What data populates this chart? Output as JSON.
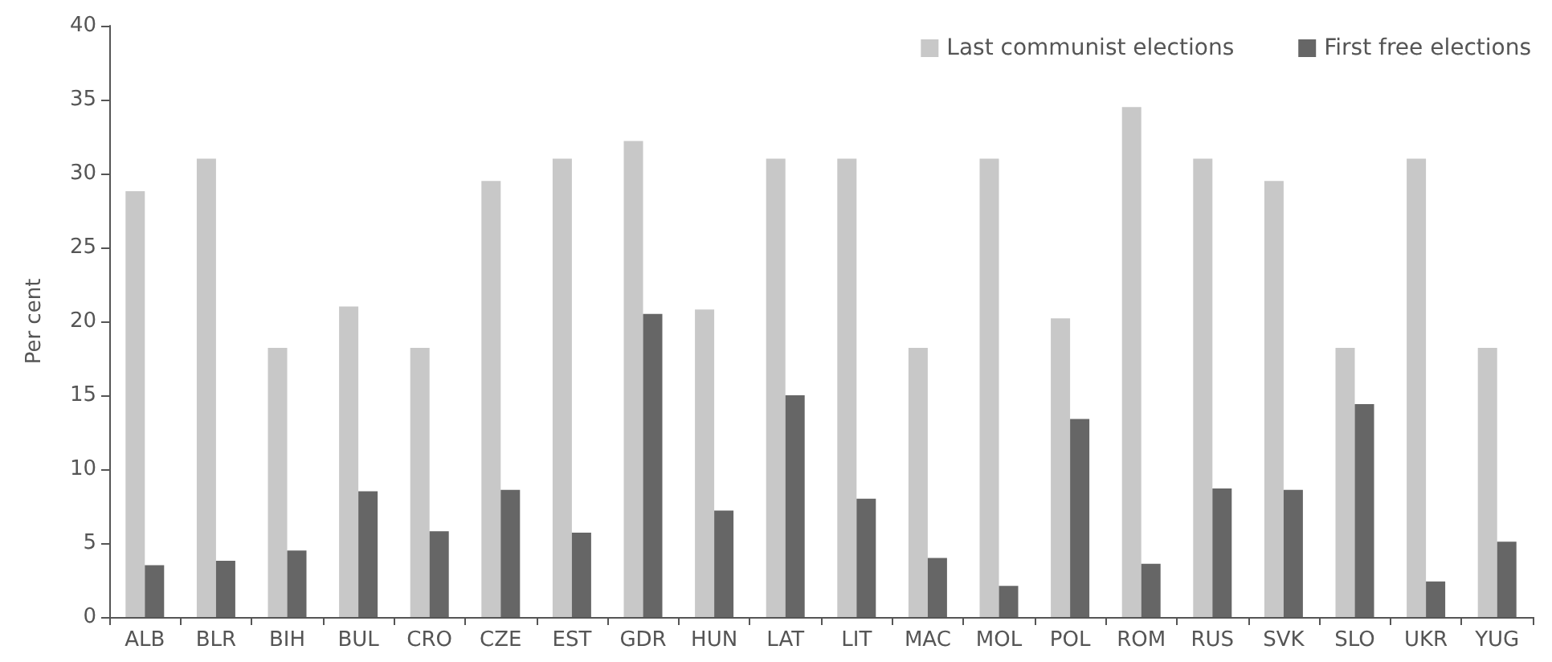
{
  "chart_data": {
    "type": "bar",
    "ylabel": "Per cent",
    "categories": [
      "ALB",
      "BLR",
      "BIH",
      "BUL",
      "CRO",
      "CZE",
      "EST",
      "GDR",
      "HUN",
      "LAT",
      "LIT",
      "MAC",
      "MOL",
      "POL",
      "ROM",
      "RUS",
      "SVK",
      "SLO",
      "UKR",
      "YUG"
    ],
    "series": [
      {
        "name": "Last communist elections",
        "color": "#c8c8c8",
        "values": [
          28.8,
          31,
          18.2,
          21,
          18.2,
          29.5,
          31,
          32.2,
          20.8,
          31,
          31,
          18.2,
          31,
          20.2,
          34.5,
          31,
          29.5,
          18.2,
          31,
          18.2
        ]
      },
      {
        "name": "First free elections",
        "color": "#666666",
        "values": [
          3.5,
          3.8,
          4.5,
          8.5,
          5.8,
          8.6,
          5.7,
          20.5,
          7.2,
          15,
          8,
          4,
          2.1,
          13.4,
          3.6,
          8.7,
          8.6,
          14.4,
          2.4,
          5.1
        ]
      }
    ],
    "ylim": [
      0,
      40
    ],
    "yticks": [
      0,
      5,
      10,
      15,
      20,
      25,
      30,
      35,
      40
    ],
    "grid": false,
    "legend": "top right"
  }
}
